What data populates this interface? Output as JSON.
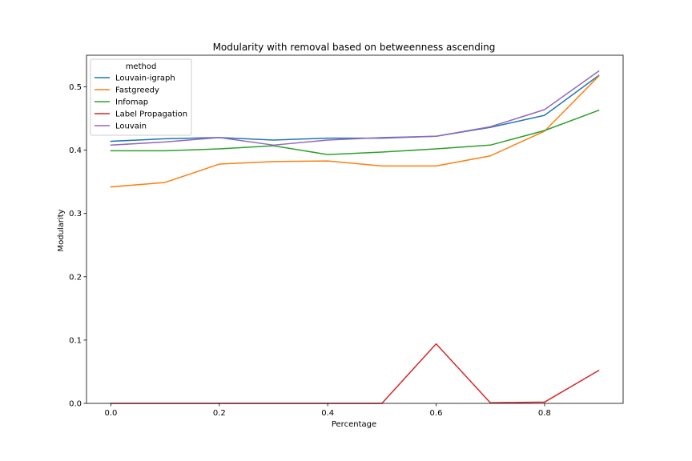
{
  "chart_data": {
    "type": "line",
    "title": "Modularity with removal based on betweenness ascending",
    "xlabel": "Percentage",
    "ylabel": "Modularity",
    "xlim": [
      -0.045,
      0.945
    ],
    "ylim": [
      0.0,
      0.55
    ],
    "xticks": [
      "0.0",
      "0.2",
      "0.4",
      "0.6",
      "0.8"
    ],
    "yticks": [
      "0.0",
      "0.1",
      "0.2",
      "0.3",
      "0.4",
      "0.5"
    ],
    "legend": {
      "title": "method",
      "placement": "top-left"
    },
    "grid": false,
    "x": [
      0.0,
      0.1,
      0.2,
      0.3,
      0.4,
      0.5,
      0.6,
      0.7,
      0.8,
      0.9
    ],
    "series": [
      {
        "name": "Louvain-igraph",
        "color": "#1f77b4",
        "values": [
          0.414,
          0.418,
          0.42,
          0.416,
          0.419,
          0.419,
          0.422,
          0.436,
          0.455,
          0.518
        ]
      },
      {
        "name": "Fastgreedy",
        "color": "#ff7f0e",
        "values": [
          0.342,
          0.349,
          0.378,
          0.382,
          0.383,
          0.375,
          0.375,
          0.391,
          0.43,
          0.517
        ]
      },
      {
        "name": "Infomap",
        "color": "#2ca02c",
        "values": [
          0.399,
          0.399,
          0.402,
          0.407,
          0.393,
          0.397,
          0.402,
          0.408,
          0.431,
          0.463
        ]
      },
      {
        "name": "Label Propagation",
        "color": "#d62728",
        "values": [
          0.0,
          0.0,
          0.0,
          0.0,
          0.0,
          0.0,
          0.094,
          0.001,
          0.002,
          0.052
        ]
      },
      {
        "name": "Louvain",
        "color": "#9467bd",
        "values": [
          0.408,
          0.413,
          0.42,
          0.408,
          0.416,
          0.42,
          0.422,
          0.437,
          0.464,
          0.525
        ]
      }
    ]
  }
}
